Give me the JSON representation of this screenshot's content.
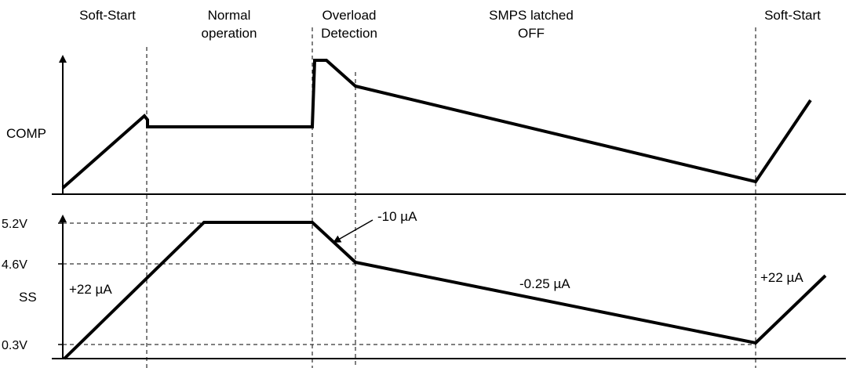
{
  "phases": [
    {
      "line1": "Soft-Start",
      "line2": ""
    },
    {
      "line1": "Normal",
      "line2": "operation"
    },
    {
      "line1": "Overload",
      "line2": "Detection"
    },
    {
      "line1": "SMPS latched",
      "line2": "OFF"
    },
    {
      "line1": "Soft-Start",
      "line2": ""
    }
  ],
  "axes": {
    "comp_label": "COMP",
    "ss_label": "SS"
  },
  "levels": {
    "v52": "5.2V",
    "v46": "4.6V",
    "v03": "0.3V"
  },
  "currents": {
    "charge": "+22 µA",
    "discharge_fast": "-10 µA",
    "discharge_slow": "-0.25 µA",
    "recharge": "+22 µA"
  },
  "colors": {
    "line": "#000000",
    "background": "#ffffff"
  }
}
